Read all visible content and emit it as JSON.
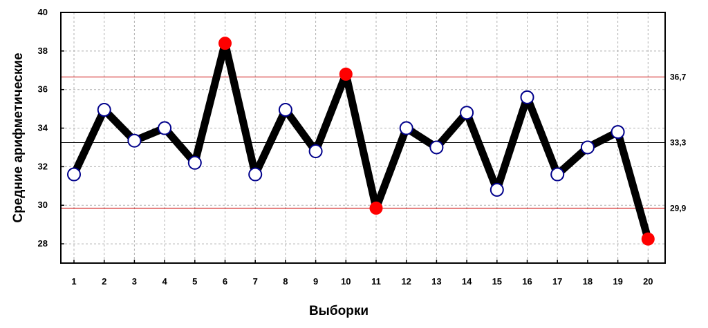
{
  "chart_data": {
    "type": "line",
    "xlabel": "Выборки",
    "ylabel": "Средние арифметические",
    "x": [
      1,
      2,
      3,
      4,
      5,
      6,
      7,
      8,
      9,
      10,
      11,
      12,
      13,
      14,
      15,
      16,
      17,
      18,
      19,
      20
    ],
    "x_tick_labels": [
      "1",
      "2",
      "3",
      "4",
      "5",
      "6",
      "7",
      "8",
      "9",
      "10",
      "11",
      "12",
      "13",
      "14",
      "15",
      "16",
      "17",
      "18",
      "19",
      "20"
    ],
    "values": [
      31.6,
      34.95,
      33.35,
      34.0,
      32.2,
      38.4,
      31.6,
      34.95,
      32.8,
      36.8,
      29.85,
      34.0,
      33.0,
      34.8,
      30.8,
      35.6,
      31.6,
      33.0,
      33.8,
      28.25
    ],
    "out_of_control_points": [
      6,
      10,
      11,
      20
    ],
    "ylim": [
      27,
      40
    ],
    "y_ticks": [
      28,
      30,
      32,
      34,
      36,
      38,
      40
    ],
    "y_tick_labels": [
      "28",
      "30",
      "32",
      "34",
      "36",
      "38",
      "40"
    ],
    "control_lines": [
      {
        "value": 36.65,
        "label": "36,7",
        "color": "#cc0000"
      },
      {
        "value": 33.25,
        "label": "33,3",
        "color": "#000000"
      },
      {
        "value": 29.85,
        "label": "29,9",
        "color": "#cc0000"
      }
    ],
    "grid": true,
    "colors": {
      "line": "#000000",
      "marker_fill": "#ffffff",
      "marker_stroke": "#00008b",
      "out_of_control": "#ff0000",
      "grid": "#b0b0b0"
    }
  }
}
